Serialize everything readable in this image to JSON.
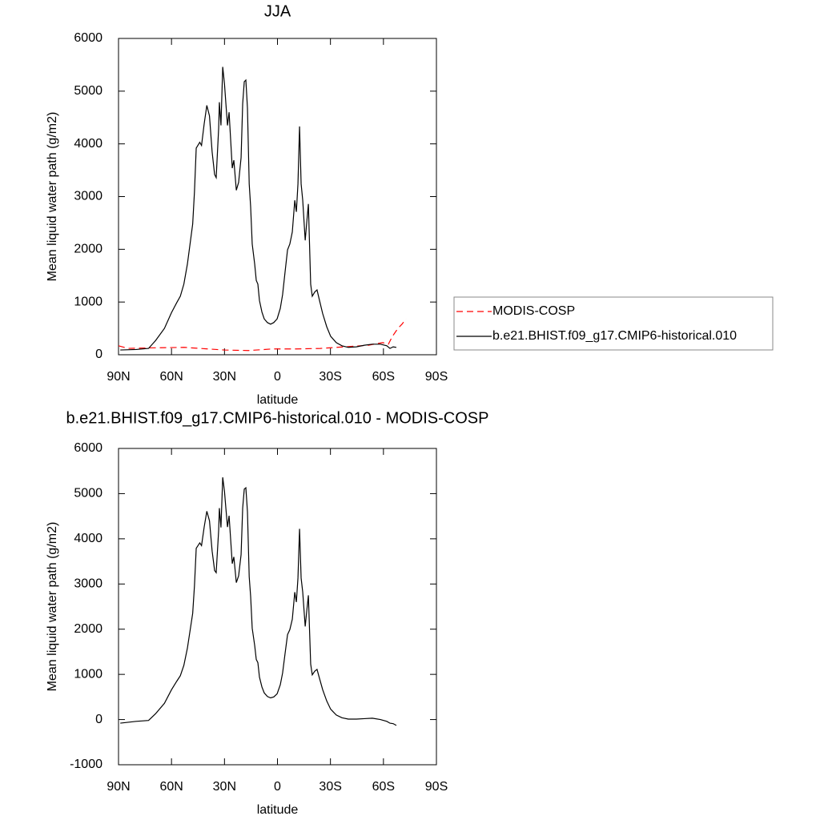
{
  "chart_data": [
    {
      "type": "line",
      "title": "JJA",
      "xlabel": "latitude",
      "ylabel": "Mean liquid water path (g/m2)",
      "xlim": [
        90,
        -90
      ],
      "xticks": [
        {
          "value": 90,
          "label": "90N"
        },
        {
          "value": 60,
          "label": "60N"
        },
        {
          "value": 30,
          "label": "30N"
        },
        0,
        {
          "value": -30,
          "label": "30S"
        },
        {
          "value": -60,
          "label": "60S"
        },
        {
          "value": -90,
          "label": "90S"
        }
      ],
      "ylim": [
        0,
        6000
      ],
      "yticks": [
        0,
        1000,
        2000,
        3000,
        4000,
        5000,
        6000
      ],
      "legend": "right",
      "series": [
        {
          "name": "MODIS-COSP",
          "color": "#ff0000",
          "dashed": true,
          "x": [
            90,
            84.6,
            73,
            52.8,
            43.8,
            30.2,
            16.5,
            2.9,
            -10.7,
            -24.3,
            -37.9,
            -51.5,
            -56,
            -59.6,
            -62.8,
            -65.1,
            -68.2,
            -70.5,
            -72.8
          ],
          "values": [
            170,
            120,
            130,
            140,
            120,
            90,
            80,
            110,
            110,
            120,
            150,
            180,
            210,
            230,
            200,
            350,
            500,
            580,
            680
          ]
        },
        {
          "name": "b.e21.BHIST.f09_g17.CMIP6-historical.010",
          "color": "#000000",
          "dashed": false,
          "x": [
            89,
            80,
            73,
            69,
            64,
            60,
            57,
            55,
            53,
            51,
            48,
            47,
            46,
            44,
            43,
            41.5,
            40,
            38.5,
            37,
            35.6,
            34.7,
            33.3,
            32.9,
            32,
            31,
            30,
            29.2,
            28.3,
            27.4,
            25.6,
            24.7,
            23.3,
            22,
            20.6,
            19.7,
            18.8,
            17.9,
            17,
            16,
            15.2,
            14.3,
            12.9,
            12,
            11.1,
            10.2,
            8.8,
            7.5,
            5.7,
            3.9,
            2.1,
            0.2,
            -1.6,
            -2.9,
            -4.3,
            -5.7,
            -7,
            -8.4,
            -9.8,
            -10.7,
            -11.6,
            -12.5,
            -13.4,
            -14.3,
            -15.7,
            -16.5,
            -17.5,
            -18.8,
            -19.7,
            -21.1,
            -22.4,
            -23.8,
            -25.6,
            -27.9,
            -30.1,
            -33.3,
            -36.5,
            -40.1,
            -44.7,
            -49.2,
            -53.7,
            -58.3,
            -61.9,
            -63.7,
            -65.5,
            -67.3
          ],
          "values": [
            90,
            100,
            120,
            270,
            500,
            800,
            990,
            1110,
            1340,
            1720,
            2480,
            3090,
            3920,
            4030,
            3970,
            4380,
            4730,
            4530,
            3850,
            3420,
            3360,
            4300,
            4790,
            4350,
            5460,
            5140,
            4760,
            4350,
            4600,
            3540,
            3690,
            3120,
            3270,
            3740,
            4760,
            5180,
            5210,
            4680,
            3240,
            2810,
            2100,
            1720,
            1410,
            1340,
            1030,
            810,
            680,
            610,
            580,
            610,
            680,
            880,
            1140,
            1570,
            1990,
            2100,
            2330,
            2930,
            2710,
            3240,
            4330,
            3240,
            2930,
            2170,
            2480,
            2860,
            1340,
            1110,
            1190,
            1230,
            1030,
            780,
            530,
            350,
            230,
            170,
            140,
            150,
            180,
            200,
            200,
            170,
            120,
            150,
            140
          ]
        }
      ]
    },
    {
      "type": "line",
      "title": "b.e21.BHIST.f09_g17.CMIP6-historical.010 - MODIS-COSP",
      "xlabel": "latitude",
      "ylabel": "Mean liquid water path (g/m2)",
      "xlim": [
        90,
        -90
      ],
      "xticks": [
        {
          "value": 90,
          "label": "90N"
        },
        {
          "value": 60,
          "label": "60N"
        },
        {
          "value": 30,
          "label": "30N"
        },
        0,
        {
          "value": -30,
          "label": "30S"
        },
        {
          "value": -60,
          "label": "60S"
        },
        {
          "value": -90,
          "label": "90S"
        }
      ],
      "ylim": [
        -1000,
        6000
      ],
      "yticks": [
        -1000,
        0,
        1000,
        2000,
        3000,
        4000,
        5000,
        6000
      ],
      "color": "#000000",
      "x": [
        89,
        80,
        73,
        69,
        64,
        60,
        57,
        55,
        53,
        51,
        48,
        47,
        46,
        44,
        43,
        41.5,
        40,
        38.5,
        37,
        35.6,
        34.7,
        33.3,
        32.9,
        32,
        31,
        30,
        29.2,
        28.3,
        27.4,
        25.6,
        24.7,
        23.3,
        22,
        20.6,
        19.7,
        18.8,
        17.9,
        17,
        16,
        15.2,
        14.3,
        12.9,
        12,
        11.1,
        10.2,
        8.8,
        7.5,
        5.7,
        3.9,
        2.1,
        0.2,
        -1.6,
        -2.9,
        -4.3,
        -5.7,
        -7,
        -8.4,
        -9.8,
        -10.7,
        -11.6,
        -12.5,
        -13.4,
        -14.3,
        -15.7,
        -16.5,
        -17.5,
        -18.8,
        -19.7,
        -21.1,
        -22.4,
        -23.8,
        -25.6,
        -27.9,
        -30.1,
        -33.3,
        -36.5,
        -40.1,
        -44.7,
        -49.2,
        -53.7,
        -58.3,
        -61.9,
        -63.7,
        -65.5,
        -67.3
      ],
      "values": [
        -80,
        -40,
        -20,
        130,
        360,
        660,
        850,
        970,
        1200,
        1580,
        2350,
        2960,
        3790,
        3910,
        3850,
        4260,
        4610,
        4400,
        3730,
        3300,
        3250,
        4190,
        4680,
        4250,
        5360,
        5050,
        4670,
        4260,
        4510,
        3450,
        3600,
        3030,
        3180,
        3650,
        4680,
        5100,
        5130,
        4600,
        3160,
        2730,
        2020,
        1640,
        1330,
        1260,
        940,
        720,
        590,
        510,
        480,
        500,
        570,
        770,
        1030,
        1460,
        1880,
        1990,
        2220,
        2820,
        2600,
        3130,
        4220,
        3130,
        2820,
        2060,
        2370,
        2750,
        1230,
        990,
        1070,
        1110,
        910,
        660,
        410,
        230,
        100,
        40,
        10,
        10,
        20,
        30,
        0,
        -40,
        -80,
        -90,
        -130
      ]
    }
  ]
}
